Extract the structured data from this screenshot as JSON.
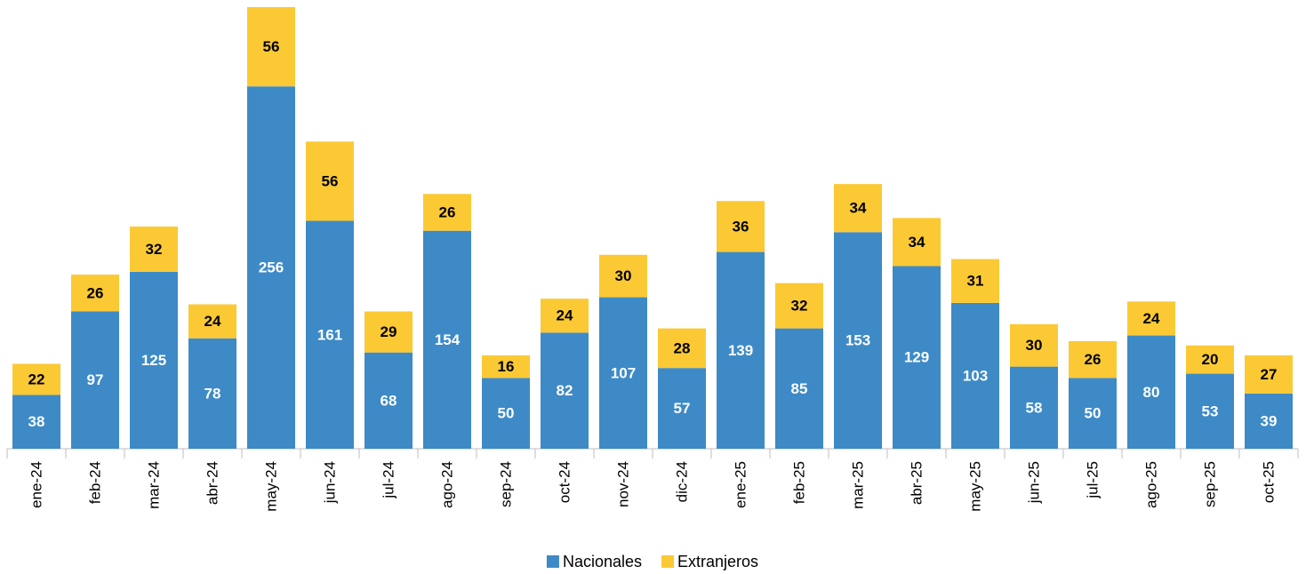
{
  "chart_data": {
    "type": "stacked_bar",
    "categories": [
      "ene-24",
      "feb-24",
      "mar-24",
      "abr-24",
      "may-24",
      "jun-24",
      "jul-24",
      "ago-24",
      "sep-24",
      "oct-24",
      "nov-24",
      "dic-24",
      "ene-25",
      "feb-25",
      "mar-25",
      "abr-25",
      "may-25",
      "jun-25",
      "jul-25",
      "ago-25",
      "sep-25",
      "oct-25"
    ],
    "series": [
      {
        "name": "Nacionales",
        "color": "#3d8ac7",
        "values": [
          38,
          97,
          125,
          78,
          256,
          161,
          68,
          154,
          50,
          82,
          107,
          57,
          139,
          85,
          153,
          129,
          103,
          58,
          50,
          80,
          53,
          39
        ]
      },
      {
        "name": "Extranjeros",
        "color": "#fbc934",
        "values": [
          22,
          26,
          32,
          24,
          56,
          56,
          29,
          26,
          16,
          24,
          30,
          28,
          36,
          32,
          34,
          34,
          31,
          30,
          26,
          24,
          20,
          27
        ]
      }
    ],
    "legend": "bottom"
  }
}
